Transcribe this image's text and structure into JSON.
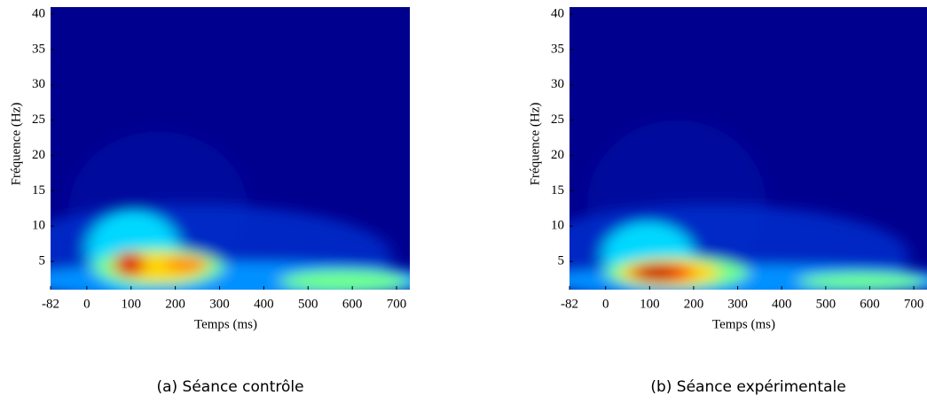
{
  "chart_data": [
    {
      "type": "heatmap",
      "caption": "(a) Séance contrôle",
      "xlabel": "Temps (ms)",
      "ylabel": "Fréquence (Hz)",
      "xlim": [
        -82,
        730
      ],
      "xticks": [
        -82,
        0,
        100,
        200,
        300,
        400,
        500,
        600,
        700
      ],
      "ylim": [
        1,
        41
      ],
      "yticks": [
        5,
        10,
        15,
        20,
        25,
        30,
        35,
        40
      ]
    },
    {
      "type": "heatmap",
      "caption": "(b) Séance expérimentale",
      "xlabel": "Temps (ms)",
      "ylabel": "Fréquence (Hz)",
      "xlim": [
        -82,
        730
      ],
      "xticks": [
        -82,
        0,
        100,
        200,
        300,
        400,
        500,
        600,
        700
      ],
      "ylim": [
        1,
        41
      ],
      "yticks": [
        5,
        10,
        15,
        20,
        25,
        30,
        35,
        40
      ]
    }
  ]
}
